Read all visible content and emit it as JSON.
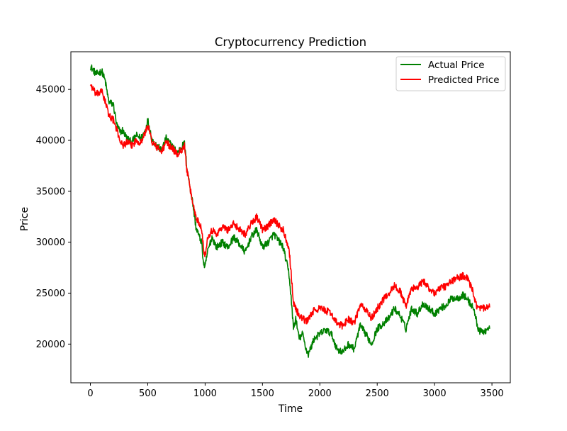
{
  "chart_data": {
    "type": "line",
    "title": "Cryptocurrency Prediction",
    "xlabel": "Time",
    "ylabel": "Price",
    "xlim": [
      -170,
      3660
    ],
    "ylim": [
      16200,
      48700
    ],
    "xticks": [
      0,
      500,
      1000,
      1500,
      2000,
      2500,
      3000,
      3500
    ],
    "xtick_labels": [
      "0",
      "500",
      "1000",
      "1500",
      "2000",
      "2500",
      "3000",
      "3500"
    ],
    "yticks": [
      20000,
      25000,
      30000,
      35000,
      40000,
      45000
    ],
    "ytick_labels": [
      "20000",
      "25000",
      "30000",
      "35000",
      "40000",
      "45000"
    ],
    "grid": false,
    "legend_position": "top-right",
    "x": [
      0,
      50,
      100,
      130,
      160,
      200,
      230,
      260,
      280,
      320,
      360,
      400,
      440,
      480,
      500,
      540,
      580,
      620,
      660,
      700,
      760,
      790,
      820,
      840,
      860,
      890,
      920,
      950,
      970,
      985,
      1000,
      1020,
      1060,
      1100,
      1150,
      1200,
      1250,
      1300,
      1350,
      1400,
      1450,
      1500,
      1550,
      1600,
      1650,
      1680,
      1700,
      1730,
      1750,
      1770,
      1790,
      1820,
      1850,
      1880,
      1900,
      1950,
      2000,
      2050,
      2100,
      2150,
      2200,
      2250,
      2300,
      2350,
      2400,
      2450,
      2500,
      2550,
      2600,
      2650,
      2700,
      2750,
      2800,
      2850,
      2900,
      2950,
      3000,
      3050,
      3100,
      3150,
      3200,
      3250,
      3280,
      3310,
      3340,
      3360,
      3380,
      3400,
      3440,
      3480
    ],
    "series": [
      {
        "name": "Actual Price",
        "color": "#008000",
        "values": [
          47300,
          46500,
          46800,
          45800,
          43800,
          43500,
          41500,
          40800,
          41000,
          40200,
          39800,
          40500,
          40200,
          41000,
          42000,
          40000,
          39500,
          39000,
          40200,
          39600,
          38800,
          39300,
          39700,
          37500,
          36000,
          34000,
          31500,
          30500,
          30000,
          28000,
          27500,
          29000,
          30500,
          29500,
          30000,
          29500,
          30500,
          29800,
          29000,
          30500,
          31200,
          29500,
          30000,
          30800,
          30000,
          29500,
          28500,
          27000,
          24500,
          21500,
          22500,
          20500,
          21000,
          19500,
          19000,
          20500,
          21000,
          21400,
          21000,
          19500,
          19200,
          20000,
          19500,
          21800,
          21000,
          20000,
          21500,
          22000,
          22500,
          23500,
          22800,
          21500,
          23500,
          23000,
          24000,
          23500,
          23000,
          23500,
          23800,
          24500,
          24500,
          24800,
          24500,
          24000,
          23500,
          22500,
          21500,
          21200,
          21300,
          21500
        ]
      },
      {
        "name": "Predicted Price",
        "color": "#ff0000",
        "values": [
          45500,
          44500,
          44800,
          43800,
          42500,
          42000,
          41000,
          40000,
          39500,
          39800,
          39500,
          40000,
          39800,
          40800,
          41500,
          39800,
          39300,
          38900,
          39800,
          39400,
          38600,
          39000,
          39500,
          37200,
          35800,
          34000,
          32500,
          31800,
          31500,
          29500,
          28500,
          30500,
          31200,
          30800,
          31500,
          31200,
          31800,
          31300,
          30800,
          31800,
          32500,
          31200,
          31600,
          32300,
          31500,
          31200,
          30500,
          29500,
          27000,
          24000,
          23500,
          22800,
          22500,
          22200,
          22500,
          23300,
          23500,
          23300,
          23000,
          22000,
          21800,
          22500,
          22000,
          23800,
          23400,
          22500,
          23500,
          24300,
          25000,
          25700,
          25200,
          23700,
          25500,
          25500,
          26200,
          25500,
          25000,
          25500,
          25700,
          26200,
          26500,
          26700,
          26600,
          25800,
          25000,
          24000,
          23400,
          23500,
          23500,
          23600
        ]
      }
    ]
  }
}
